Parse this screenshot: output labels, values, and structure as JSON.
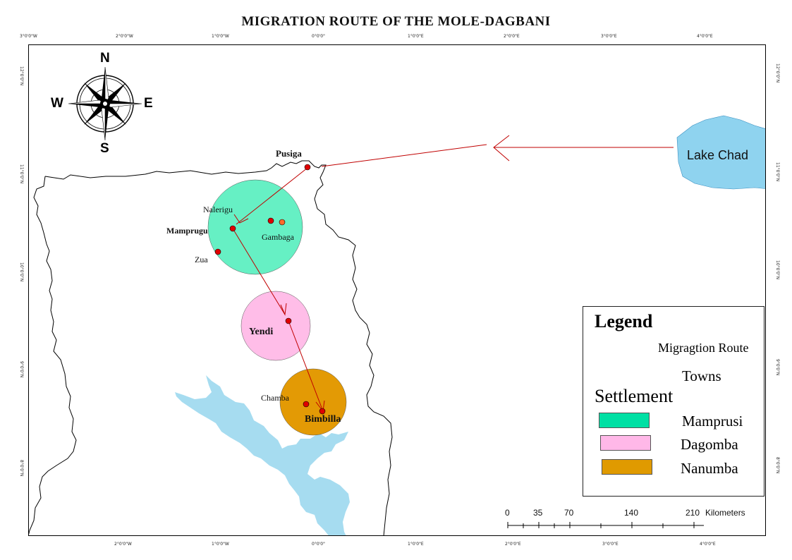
{
  "title": "MIGRATION ROUTE OF THE MOLE-DAGBANI",
  "top_ticks": [
    "3°0'0\"W",
    "2°0'0\"W",
    "1°0'0\"W",
    "0°0'0\"",
    "1°0'0\"E",
    "2°0'0\"E",
    "3°0'0\"E",
    "4°0'0\"E"
  ],
  "bottom_ticks": [
    "2°0'0\"W",
    "1°0'0\"W",
    "0°0'0\"",
    "1°0'0\"E",
    "2°0'0\"E",
    "3°0'0\"E",
    "4°0'0\"E"
  ],
  "left_ticks": [
    "12°0'0\"N",
    "11°0'0\"N",
    "10°0'0\"N",
    "9°0'0\"N",
    "8°0'0\"N"
  ],
  "right_ticks": [
    "12°0'0\"N",
    "11°0'0\"N",
    "10°0'0\"N",
    "9°0'0\"N",
    "8°0'0\"N"
  ],
  "compass": {
    "north": "N",
    "south": "S",
    "east": "E",
    "west": "W"
  },
  "towns": {
    "pusiga": "Pusiga",
    "nalerigu": "Nalerigu",
    "mamprugu": "Mamprugu",
    "gambaga": "Gambaga",
    "zua": "Zua",
    "yendi": "Yendi",
    "chamba": "Chamba",
    "bimbilla": "Bimbilla"
  },
  "lake_chad": "Lake Chad",
  "legend": {
    "title": "Legend",
    "route": "Migragtion Route",
    "towns": "Towns",
    "settlement": "Settlement",
    "items": [
      {
        "label": "Mamprusi",
        "color": "#00e0a4"
      },
      {
        "label": "Dagomba",
        "color": "#ffb8e8"
      },
      {
        "label": "Nanumba",
        "color": "#e09a00"
      }
    ]
  },
  "scale": {
    "marks": [
      "0",
      "35",
      "70",
      "140",
      "210"
    ],
    "unit": "Kilometers"
  },
  "colors": {
    "mamprusi": "#66f0c4",
    "dagomba": "#ffbde8",
    "nanumba": "#e39a05",
    "water": "#a6dcf0",
    "route": "#c00000",
    "town": "#e00000"
  }
}
